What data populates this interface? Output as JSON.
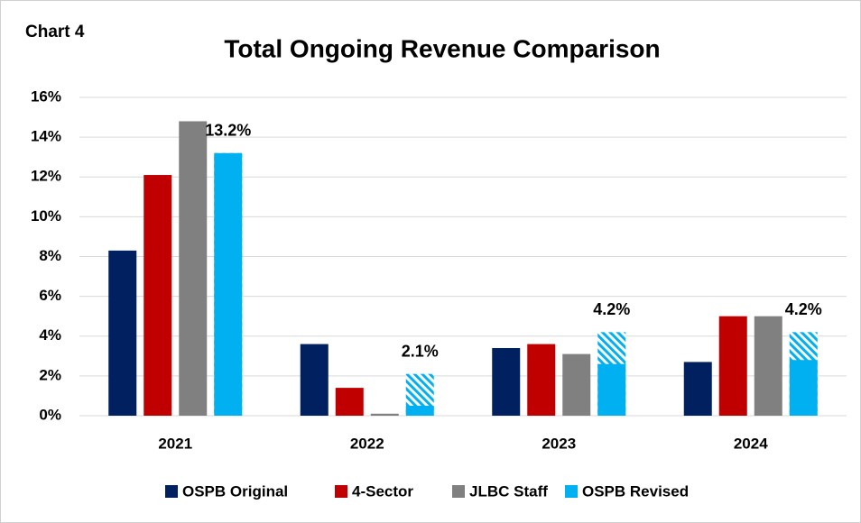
{
  "chart_data": {
    "type": "bar",
    "label": "Chart 4",
    "title": "Total Ongoing Revenue Comparison",
    "categories": [
      "2021",
      "2022",
      "2023",
      "2024"
    ],
    "series": [
      {
        "name": "OSPB Original",
        "color": "#002060",
        "values": [
          8.3,
          3.6,
          3.4,
          2.7
        ]
      },
      {
        "name": "4-Sector",
        "color": "#c00000",
        "values": [
          12.1,
          1.4,
          3.6,
          5.0
        ]
      },
      {
        "name": "JLBC Staff",
        "color": "#808080",
        "values": [
          14.8,
          0.1,
          3.1,
          5.0
        ]
      },
      {
        "name": "OSPB Revised",
        "color": "#00b0f0",
        "values": [
          13.2,
          2.1,
          4.2,
          4.2
        ],
        "solid_values": [
          13.2,
          0.5,
          2.6,
          2.8
        ],
        "value_labels": [
          "13.2%",
          "2.1%",
          "4.2%",
          "4.2%"
        ]
      }
    ],
    "ylim": [
      0,
      16
    ],
    "yticks": [
      {
        "value": 0,
        "label": "0%"
      },
      {
        "value": 2,
        "label": "2%"
      },
      {
        "value": 4,
        "label": "4%"
      },
      {
        "value": 6,
        "label": "6%"
      },
      {
        "value": 8,
        "label": "8%"
      },
      {
        "value": 10,
        "label": "10%"
      },
      {
        "value": 12,
        "label": "12%"
      },
      {
        "value": 14,
        "label": "14%"
      },
      {
        "value": 16,
        "label": "16%"
      }
    ],
    "grid": true,
    "legend": "bottom"
  }
}
